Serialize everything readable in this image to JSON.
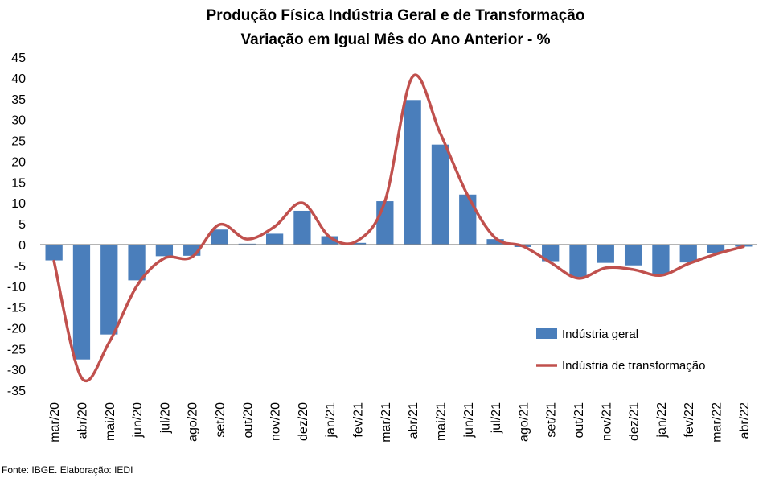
{
  "chart_data": {
    "type": "bar",
    "title": "Produção Física Indústria Geral e de Transformação",
    "subtitle": "Variação em Igual Mês do Ano Anterior - %",
    "categories": [
      "mar/20",
      "abr/20",
      "mai/20",
      "jun/20",
      "jul/20",
      "ago/20",
      "set/20",
      "out/20",
      "nov/20",
      "dez/20",
      "jan/21",
      "fev/21",
      "mar/21",
      "abr/21",
      "mai/21",
      "jun/21",
      "jul/21",
      "ago/21",
      "set/21",
      "out/21",
      "nov/21",
      "dez/21",
      "jan/22",
      "fev/22",
      "mar/22",
      "abr/22"
    ],
    "series": [
      {
        "name": "Indústria geral",
        "kind": "bar",
        "color": "#4a7ebb",
        "values": [
          -3.8,
          -27.6,
          -21.6,
          -8.6,
          -2.8,
          -2.7,
          3.6,
          0.2,
          2.6,
          8.1,
          2.0,
          0.4,
          10.4,
          34.7,
          24.0,
          12.0,
          1.3,
          -0.6,
          -4.0,
          -7.8,
          -4.4,
          -5.0,
          -7.2,
          -4.3,
          -2.1,
          -0.5
        ]
      },
      {
        "name": "Indústria de transformação",
        "kind": "line",
        "color": "#c0504d",
        "values": [
          -4.0,
          -32.0,
          -23.5,
          -10.0,
          -3.3,
          -3.0,
          4.8,
          1.3,
          4.3,
          10.0,
          1.8,
          0.9,
          10.4,
          40.3,
          26.8,
          11.8,
          1.6,
          -0.4,
          -4.3,
          -8.1,
          -5.6,
          -6.0,
          -7.4,
          -4.6,
          -2.3,
          -0.5
        ]
      }
    ],
    "ylim": [
      -35,
      45
    ],
    "yticks": [
      45,
      40,
      35,
      30,
      25,
      20,
      15,
      10,
      5,
      0,
      -5,
      -10,
      -15,
      -20,
      -25,
      -30,
      -35
    ],
    "grid": false,
    "legend_position": "bottom-right"
  },
  "source": "Fonte: IBGE. Elaboração: IEDI"
}
